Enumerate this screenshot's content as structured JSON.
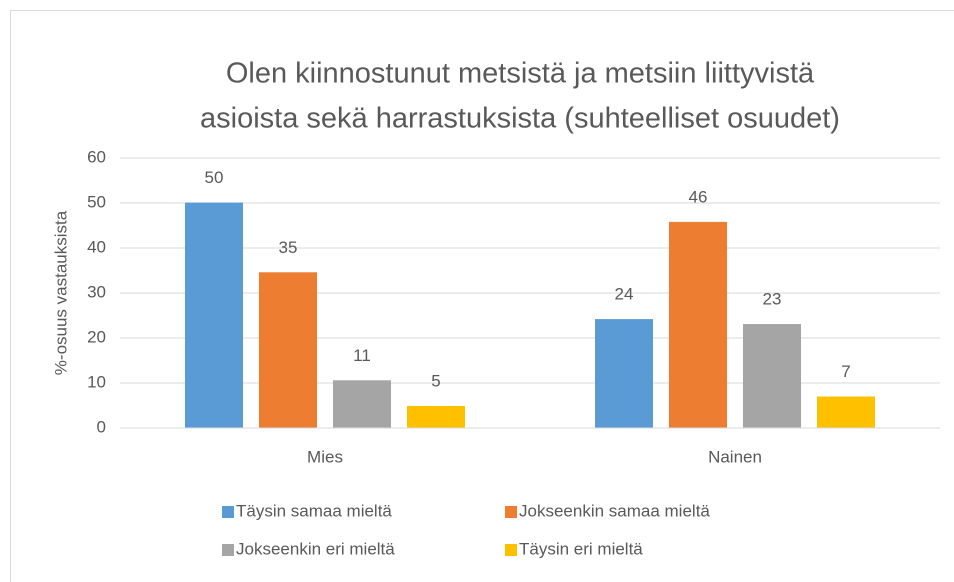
{
  "chart_data": {
    "type": "bar",
    "title": [
      "Olen kiinnostunut metsistä ja metsiin liittyvistä",
      "asioista sekä harrastuksista (suhteelliset osuudet)"
    ],
    "y_label": "%-osuus vastauksista",
    "categories": [
      "Mies",
      "Nainen"
    ],
    "series": [
      {
        "name": "Täysin samaa mieltä",
        "color": "#5b9bd5",
        "values": [
          50.1,
          24.2
        ],
        "value_labels": [
          "50",
          "24"
        ]
      },
      {
        "name": "Jokseenkin samaa mieltä",
        "color": "#ed7d31",
        "values": [
          34.6,
          45.8
        ],
        "value_labels": [
          "35",
          "46"
        ]
      },
      {
        "name": "Jokseenkin eri mieltä",
        "color": "#a5a5a5",
        "values": [
          10.6,
          23.1
        ],
        "value_labels": [
          "11",
          "23"
        ]
      },
      {
        "name": "Täysin eri mieltä",
        "color": "#ffc000",
        "values": [
          4.9,
          7.0
        ],
        "value_labels": [
          "5",
          "7"
        ]
      }
    ],
    "ylim": [
      0,
      60
    ],
    "yticks": [
      0,
      10,
      20,
      30,
      40,
      50,
      60
    ],
    "grid": true,
    "legend": "bottom"
  }
}
